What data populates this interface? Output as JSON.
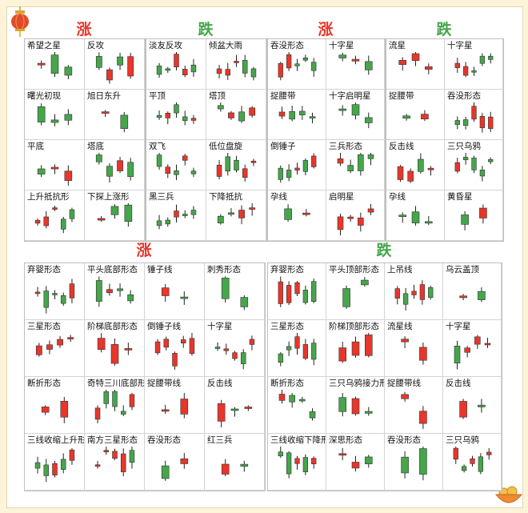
{
  "colors": {
    "up": "#e8362b",
    "down": "#45a64a",
    "wick": "#222222"
  },
  "headers": {
    "top_left_rise": "涨",
    "top_left_fall": "跌",
    "top_right_rise": "涨",
    "top_right_fall": "跌",
    "bottom_left": "涨",
    "bottom_right": "跌"
  },
  "panels": [
    {
      "id": "top-left-rise",
      "labels": [
        "希望之星",
        "反攻",
        "曙光初现",
        "旭日东升",
        "平底",
        "塔底",
        "上升抵抗形",
        "下探上涨形"
      ]
    },
    {
      "id": "top-left-fall",
      "labels": [
        "淡友反攻",
        "倾盆大雨",
        "平顶",
        "塔顶",
        "双飞",
        "低位盘旋",
        "黑三兵",
        "下降抵抗"
      ]
    },
    {
      "id": "top-right-rise",
      "labels": [
        "吞没形态",
        "十字星",
        "捉腰带",
        "十字启明星",
        "倒锤子",
        "三兵形态",
        "孕线",
        "启明星"
      ]
    },
    {
      "id": "top-right-fall",
      "labels": [
        "流星",
        "十字星",
        "捉腰带",
        "吞没形态",
        "反击线",
        "三只乌鸦",
        "孕线",
        "黄昏星"
      ]
    },
    {
      "id": "bottom-left",
      "labels": [
        "弃婴形态",
        "平头底部形态",
        "锤子线",
        "刺秀形态",
        "三星形态",
        "阶梯底部形态",
        "倒锤子线",
        "十字星",
        "断折形态",
        "奇特三川底部形态",
        "捉腰带线",
        "反击线",
        "三线收缩上升形态",
        "南方三星形态",
        "吞没形态",
        "红三兵"
      ]
    },
    {
      "id": "bottom-right",
      "labels": [
        "弃婴形态",
        "平头顶部形态",
        "上吊线",
        "乌云盖顶",
        "三星形态",
        "阶梯顶部形态",
        "流星线",
        "十字星",
        "断折形态",
        "三只乌鸦接力形态",
        "捉腰带线",
        "反击线",
        "三线收缩下降形态",
        "深思形态",
        "吞没形态",
        "三只乌鸦"
      ]
    }
  ]
}
